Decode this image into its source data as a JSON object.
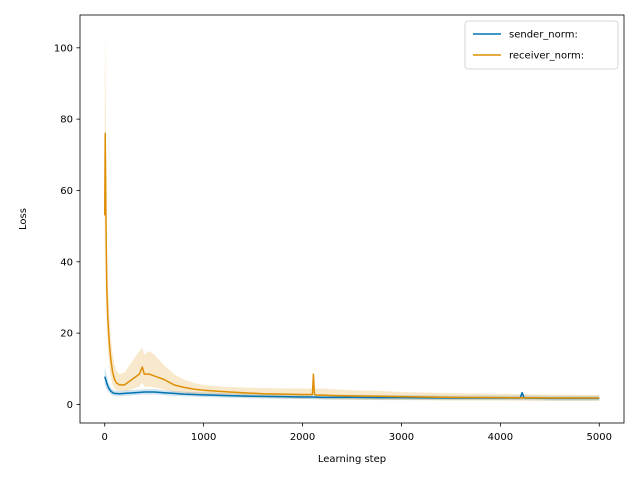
{
  "chart_data": {
    "type": "line",
    "title": "",
    "xlabel": "Learning step",
    "ylabel": "Loss",
    "xlim": [
      -250,
      5250
    ],
    "ylim": [
      -5.2,
      109.2
    ],
    "xticks": [
      0,
      1000,
      2000,
      3000,
      4000,
      5000
    ],
    "yticks": [
      0,
      20,
      40,
      60,
      80,
      100
    ],
    "grid": false,
    "legend_position": "top-right",
    "series": [
      {
        "name": "sender_norm:",
        "color": "#0173b2",
        "band_color": "#0173b2",
        "x": [
          0,
          10,
          20,
          40,
          60,
          80,
          100,
          150,
          200,
          300,
          400,
          500,
          600,
          700,
          800,
          1000,
          1200,
          1500,
          1800,
          2000,
          2100,
          2200,
          2300,
          2500,
          2800,
          3000,
          3500,
          4000,
          4200,
          4220,
          4240,
          4500,
          5000
        ],
        "y": [
          7.8,
          7.0,
          6.0,
          4.6,
          3.8,
          3.3,
          3.1,
          3.0,
          3.1,
          3.3,
          3.5,
          3.5,
          3.3,
          3.1,
          2.9,
          2.7,
          2.5,
          2.3,
          2.2,
          2.1,
          2.1,
          2.0,
          2.0,
          2.0,
          1.9,
          1.9,
          1.8,
          1.8,
          1.8,
          3.3,
          1.8,
          1.7,
          1.7
        ],
        "band_upper": [
          10.5,
          9.5,
          8.0,
          6.0,
          4.8,
          4.2,
          3.9,
          3.8,
          3.9,
          4.1,
          4.3,
          4.3,
          4.0,
          3.8,
          3.6,
          3.4,
          3.2,
          3.0,
          2.9,
          2.8,
          2.8,
          2.7,
          2.7,
          2.7,
          2.6,
          2.6,
          2.5,
          2.5,
          2.5,
          3.5,
          2.5,
          2.4,
          2.4
        ],
        "band_lower": [
          5.5,
          5.0,
          4.2,
          3.4,
          2.9,
          2.5,
          2.4,
          2.3,
          2.4,
          2.6,
          2.8,
          2.8,
          2.6,
          2.4,
          2.3,
          2.1,
          1.9,
          1.7,
          1.6,
          1.5,
          1.5,
          1.4,
          1.4,
          1.4,
          1.3,
          1.3,
          1.2,
          1.2,
          1.2,
          1.2,
          1.2,
          1.1,
          1.1
        ]
      },
      {
        "name": "receiver_norm:",
        "color": "#de8f05",
        "band_color": "#de8f05",
        "x": [
          0,
          5,
          10,
          15,
          20,
          30,
          40,
          50,
          60,
          80,
          100,
          120,
          150,
          200,
          250,
          300,
          350,
          380,
          400,
          450,
          500,
          550,
          600,
          700,
          800,
          900,
          1000,
          1200,
          1400,
          1600,
          1800,
          2000,
          2100,
          2110,
          2120,
          2140,
          2200,
          2300,
          2500,
          2800,
          3000,
          3500,
          4000,
          4500,
          5000
        ],
        "y": [
          53,
          76,
          60,
          45,
          33,
          25,
          20,
          16,
          13,
          9,
          7,
          6,
          5.5,
          5.5,
          6.5,
          7.5,
          8.5,
          10.5,
          8.5,
          8.5,
          8.0,
          7.5,
          7.0,
          5.5,
          4.8,
          4.3,
          4.0,
          3.6,
          3.3,
          3.0,
          2.9,
          2.8,
          2.8,
          8.5,
          2.9,
          2.6,
          2.6,
          2.5,
          2.4,
          2.3,
          2.2,
          2.0,
          1.9,
          1.8,
          1.8
        ],
        "band_upper": [
          90,
          104,
          85,
          65,
          50,
          38,
          30,
          24,
          19,
          14,
          11,
          9.5,
          8.5,
          9,
          11,
          13,
          15,
          16,
          14,
          15,
          14,
          12.5,
          11,
          8.5,
          7.0,
          6.0,
          5.5,
          5.0,
          4.8,
          4.6,
          4.5,
          4.5,
          4.5,
          9.0,
          4.5,
          4.5,
          4.5,
          4.3,
          4.0,
          3.8,
          3.5,
          3.2,
          3.0,
          2.8,
          2.7
        ],
        "band_lower": [
          35,
          55,
          40,
          30,
          22,
          17,
          13,
          10,
          8,
          5.5,
          4.5,
          4.0,
          3.8,
          3.8,
          4.0,
          4.5,
          5.0,
          6.0,
          5.0,
          5.0,
          4.8,
          4.5,
          4.2,
          3.5,
          3.2,
          2.9,
          2.7,
          2.4,
          2.1,
          1.9,
          1.7,
          1.6,
          1.6,
          7.0,
          1.6,
          1.5,
          1.5,
          1.4,
          1.3,
          1.2,
          1.2,
          1.1,
          1.1,
          1.0,
          1.0
        ]
      }
    ]
  }
}
